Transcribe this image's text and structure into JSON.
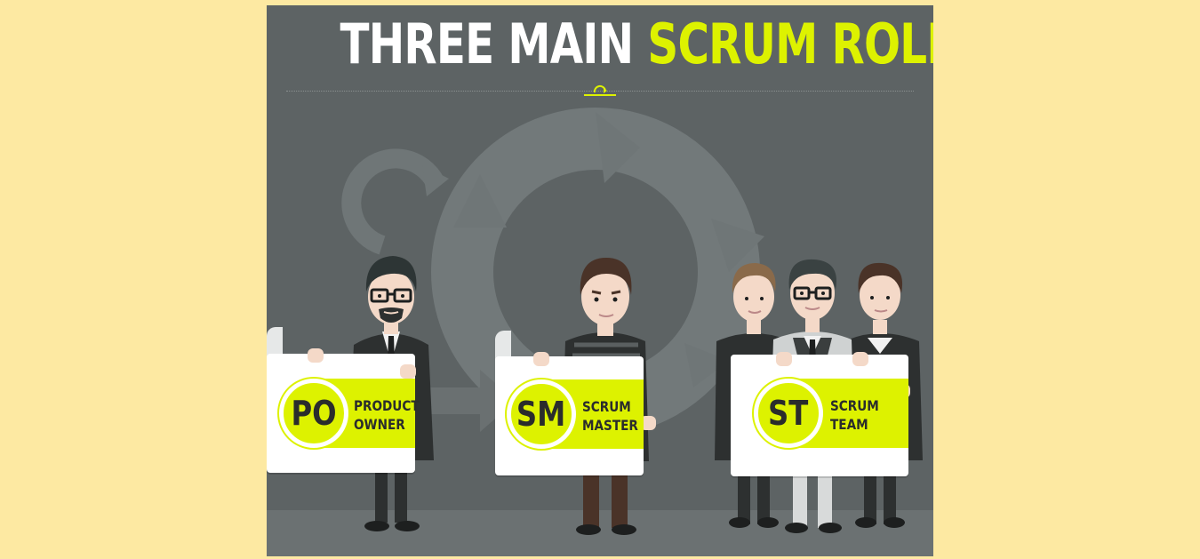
{
  "title": {
    "part1": "THREE MAIN",
    "part2": "SCRUM ROLES"
  },
  "colors": {
    "background": "#fde9a2",
    "panel": "#5d6364",
    "accent": "#ddf200",
    "white": "#ffffff"
  },
  "roles": [
    {
      "abbr": "PO",
      "line1": "PRODUCT",
      "line2": "OWNER"
    },
    {
      "abbr": "SM",
      "line1": "SCRUM",
      "line2": "MASTER"
    },
    {
      "abbr": "ST",
      "line1": "SCRUM",
      "line2": "TEAM"
    }
  ],
  "icons": {
    "logo": "scrum-cycle-logo-icon",
    "background": "cycle-arrows-icon"
  }
}
